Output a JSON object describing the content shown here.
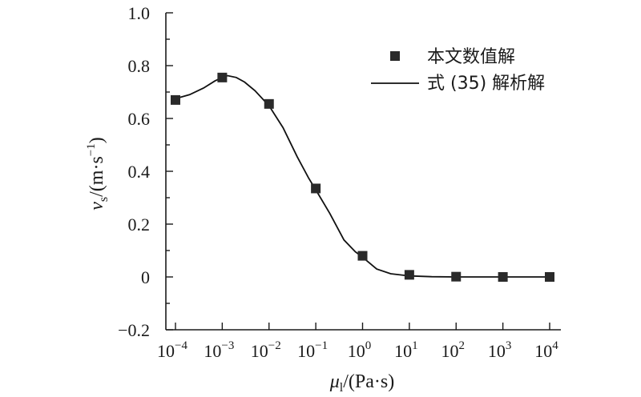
{
  "chart_data": {
    "type": "scatter",
    "x_scale": "log",
    "x": [
      0.0001,
      0.001,
      0.01,
      0.1,
      1,
      10,
      100,
      1000,
      10000
    ],
    "xlim": [
      5e-05,
      20000
    ],
    "ylim": [
      -0.2,
      1.0
    ],
    "x_ticks": [
      {
        "base": "10",
        "exp": "−4"
      },
      {
        "base": "10",
        "exp": "−3"
      },
      {
        "base": "10",
        "exp": "−2"
      },
      {
        "base": "10",
        "exp": "−1"
      },
      {
        "base": "10",
        "exp": "0"
      },
      {
        "base": "10",
        "exp": "1"
      },
      {
        "base": "10",
        "exp": "2"
      },
      {
        "base": "10",
        "exp": "3"
      },
      {
        "base": "10",
        "exp": "4"
      }
    ],
    "y_ticks": [
      "−0.2",
      "0",
      "0.2",
      "0.4",
      "0.6",
      "0.8",
      "1.0"
    ],
    "y_tick_values": [
      -0.2,
      0,
      0.2,
      0.4,
      0.6,
      0.8,
      1.0
    ],
    "xlabel": {
      "symbol": "μ",
      "sub": "l",
      "rest": "/(Pa·s)"
    },
    "ylabel": {
      "symbol": "v",
      "sub": "s",
      "unit_a": "/(m·s",
      "sup": "−1",
      "unit_b": ")"
    },
    "series": [
      {
        "name": "本文数值解",
        "kind": "markers",
        "y": [
          0.67,
          0.755,
          0.655,
          0.335,
          0.08,
          0.008,
          0.001,
          0.0,
          0.0
        ]
      },
      {
        "name": "式 (35) 解析解",
        "kind": "line",
        "curve": [
          [
            0.0001,
            0.675
          ],
          [
            0.0002,
            0.69
          ],
          [
            0.0004,
            0.715
          ],
          [
            0.0007,
            0.742
          ],
          [
            0.001,
            0.755
          ],
          [
            0.0013,
            0.762
          ],
          [
            0.002,
            0.755
          ],
          [
            0.003,
            0.738
          ],
          [
            0.005,
            0.705
          ],
          [
            0.01,
            0.648
          ],
          [
            0.02,
            0.565
          ],
          [
            0.04,
            0.455
          ],
          [
            0.07,
            0.375
          ],
          [
            0.1,
            0.33
          ],
          [
            0.2,
            0.24
          ],
          [
            0.4,
            0.14
          ],
          [
            0.7,
            0.095
          ],
          [
            1,
            0.075
          ],
          [
            2,
            0.03
          ],
          [
            4,
            0.012
          ],
          [
            10,
            0.004
          ],
          [
            30,
            0.001
          ],
          [
            100,
            0.0
          ],
          [
            10000,
            0.0
          ]
        ]
      }
    ],
    "legend_position": "top-right"
  },
  "colors": {
    "ink": "#1a1a1a",
    "marker": "#2a2a2a"
  }
}
